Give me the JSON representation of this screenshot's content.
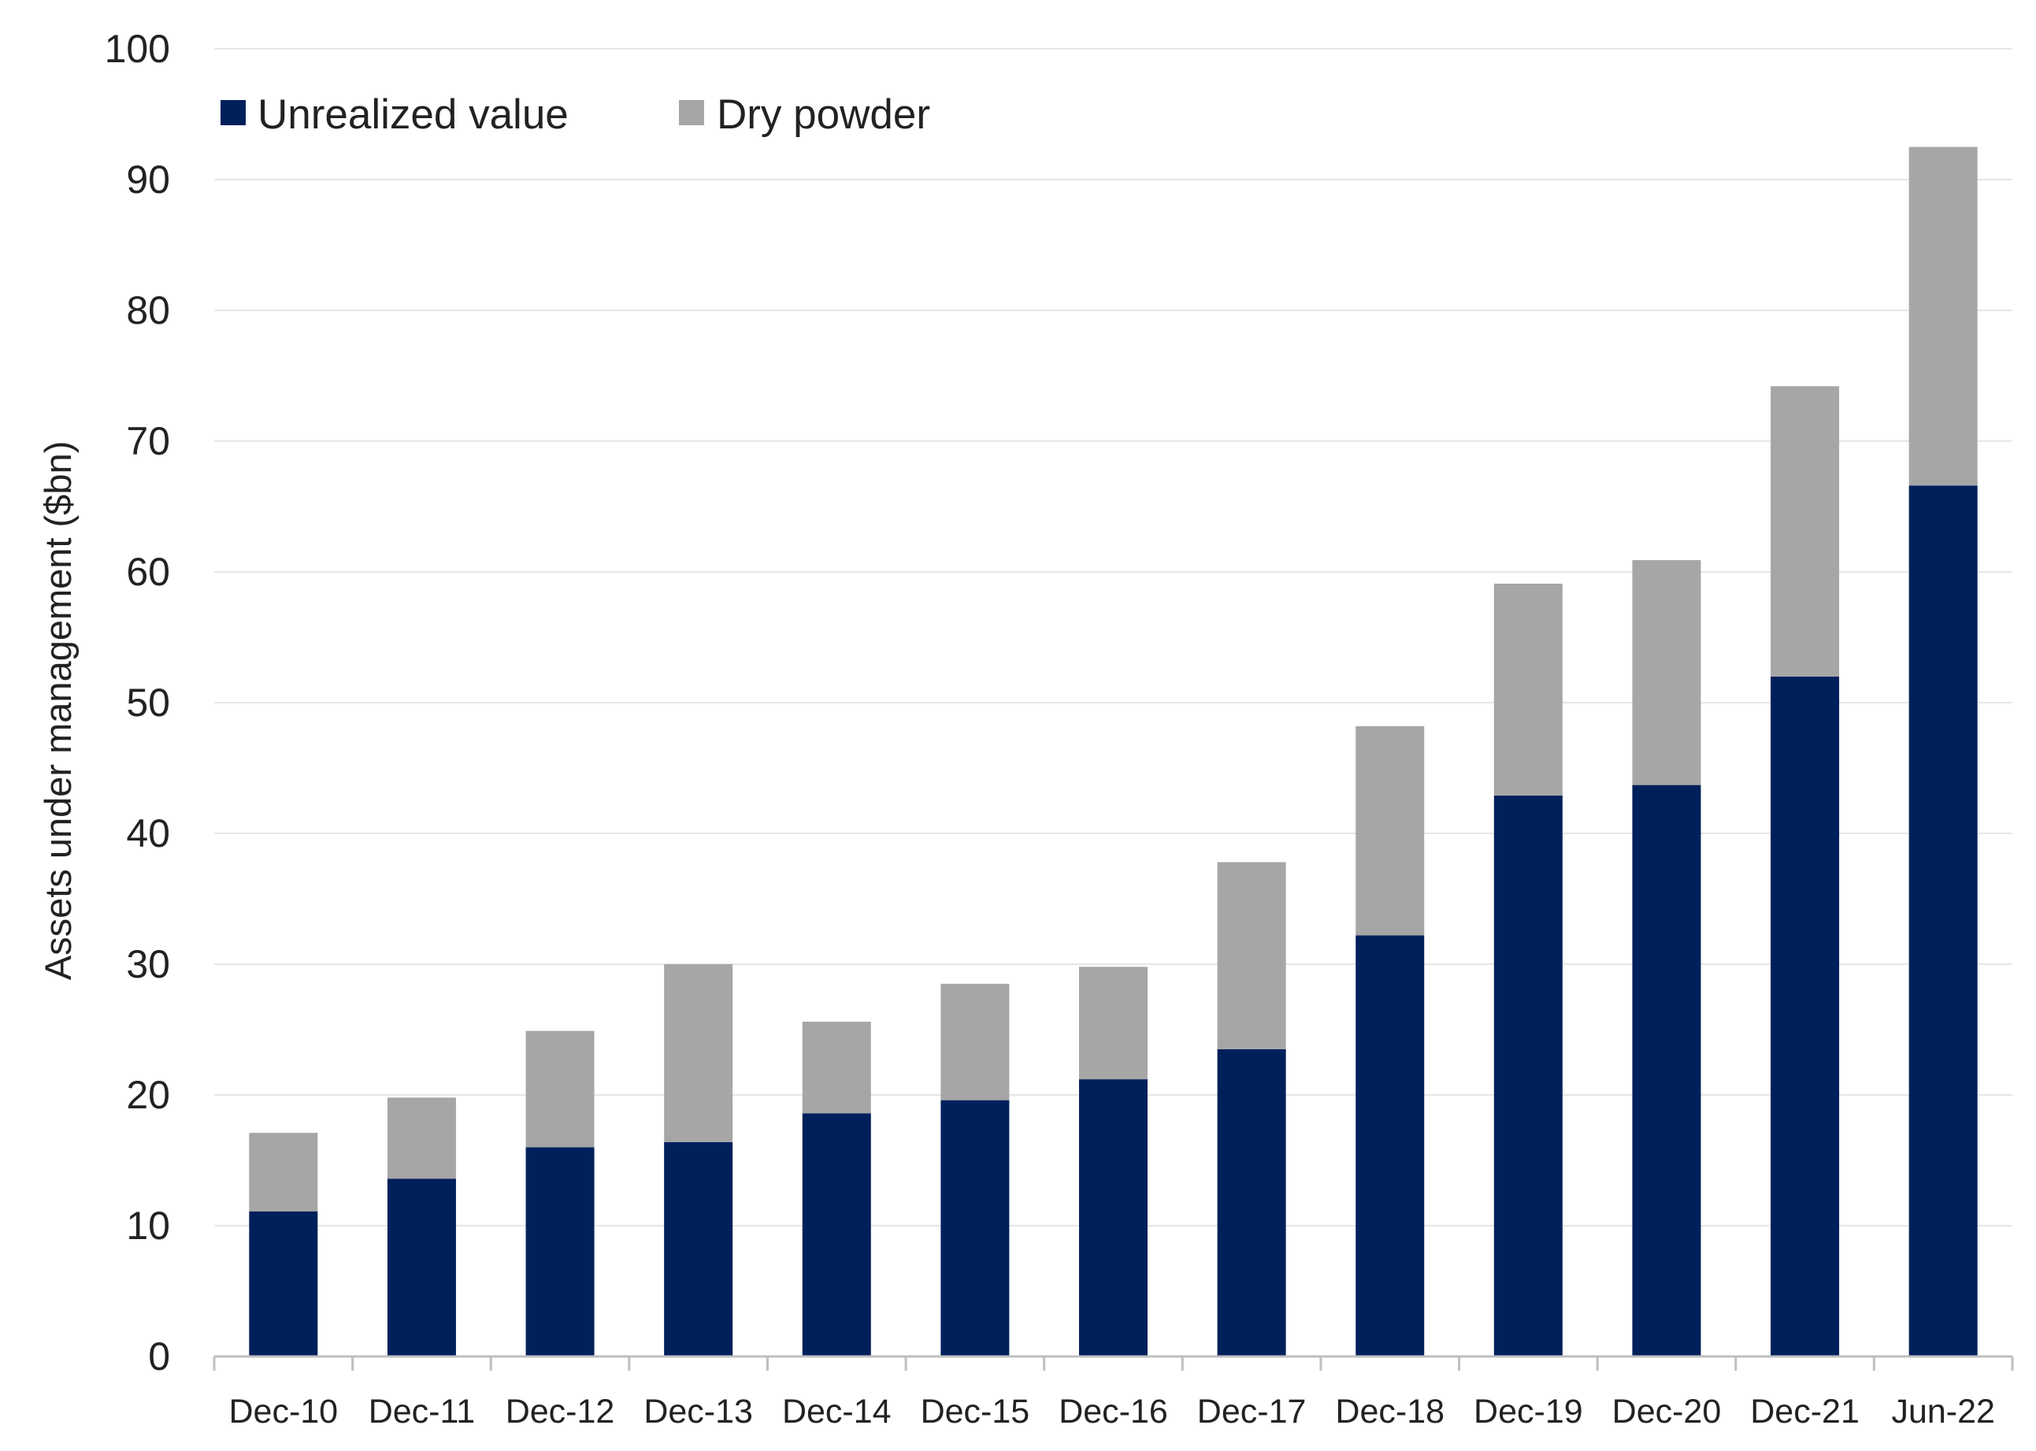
{
  "chart_data": {
    "type": "bar",
    "stacked": true,
    "title": "",
    "xlabel": "",
    "ylabel": "Assets under management ($bn)",
    "ylim": [
      0,
      100
    ],
    "yticks": [
      0,
      10,
      20,
      30,
      40,
      50,
      60,
      70,
      80,
      90,
      100
    ],
    "grid": true,
    "legend_position": "top-left",
    "categories": [
      "Dec-10",
      "Dec-11",
      "Dec-12",
      "Dec-13",
      "Dec-14",
      "Dec-15",
      "Dec-16",
      "Dec-17",
      "Dec-18",
      "Dec-19",
      "Dec-20",
      "Dec-21",
      "Jun-22"
    ],
    "series": [
      {
        "name": "Unrealized value",
        "color": "#00205b",
        "values": [
          11.1,
          13.6,
          16.0,
          16.4,
          18.6,
          19.6,
          21.2,
          23.5,
          32.2,
          42.9,
          43.7,
          52.0,
          66.6
        ]
      },
      {
        "name": "Dry powder",
        "color": "#a6a6a6",
        "values": [
          6.0,
          6.2,
          8.9,
          13.6,
          7.0,
          8.9,
          8.6,
          14.3,
          16.0,
          16.2,
          17.2,
          22.2,
          25.9
        ]
      }
    ]
  }
}
